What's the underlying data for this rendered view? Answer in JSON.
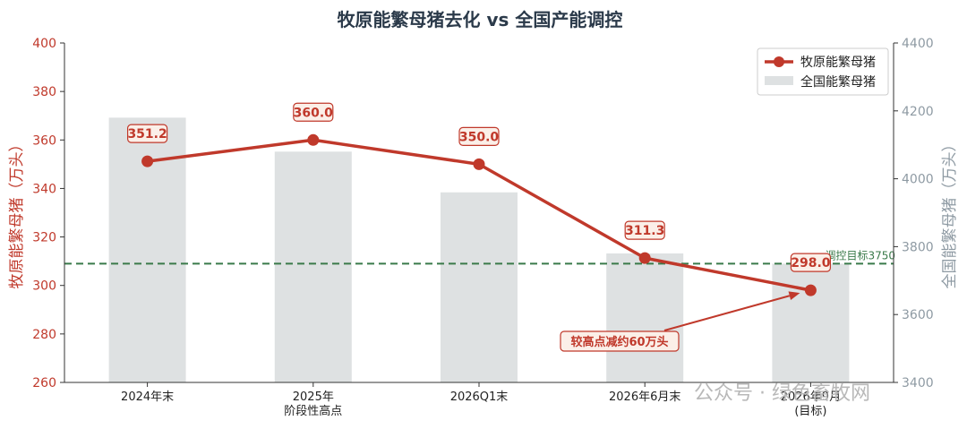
{
  "chart_data": {
    "type": "bar+line",
    "title": "牧原能繁母猪去化 vs 全国产能调控",
    "categories": [
      [
        "2024年末"
      ],
      [
        "2025年",
        "阶段性高点"
      ],
      [
        "2026Q1末"
      ],
      [
        "2026年6月末"
      ],
      [
        "2026年9月",
        "(目标)"
      ]
    ],
    "ylabel_left": "牧原能繁母猪（万头）",
    "ylabel_right": "全国能繁母猪（万头）",
    "ylim_left": [
      260,
      400
    ],
    "yticks_left": [
      260,
      280,
      300,
      320,
      340,
      360,
      380,
      400
    ],
    "ylim_right": [
      3400,
      4400
    ],
    "yticks_right": [
      3400,
      3600,
      3800,
      4000,
      4200,
      4400
    ],
    "series": [
      {
        "name": "牧原能繁母猪",
        "type": "line",
        "axis": "left",
        "color": "#c0392b",
        "values": [
          351.2,
          360.0,
          350.0,
          311.3,
          298.0
        ],
        "labels": [
          "351.2",
          "360.0",
          "350.0",
          "311.3",
          "298.0"
        ]
      },
      {
        "name": "全国能繁母猪",
        "type": "bar",
        "axis": "right",
        "color": "#dee1e2",
        "values": [
          4180,
          4080,
          3960,
          3780,
          3750
        ]
      }
    ],
    "reference_line": {
      "label": "调控目标3750",
      "value": 3750,
      "axis": "right",
      "color": "#3a7a4a"
    },
    "annotation": {
      "text": "较高点减约60万头",
      "target_index": 4
    },
    "legend_position": "top-right"
  },
  "watermark": "公众号 · 绿色畜牧网"
}
